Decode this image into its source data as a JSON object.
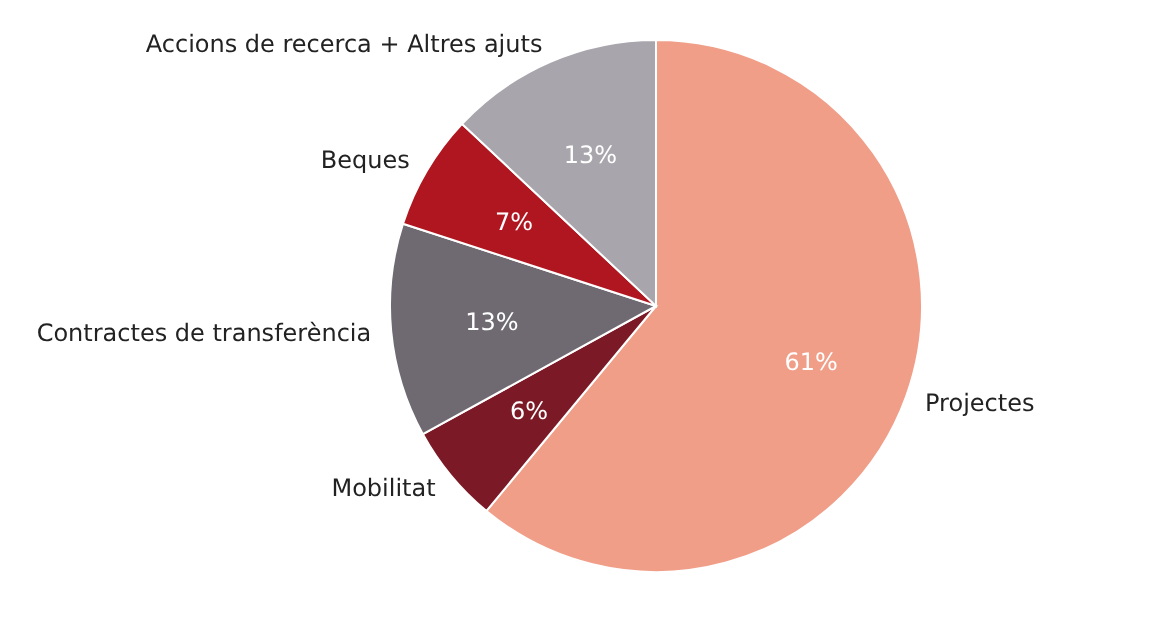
{
  "chart_data": {
    "type": "pie",
    "categories": [
      "Projectes",
      "Mobilitat",
      "Contractes de transferència",
      "Beques",
      "Accions de recerca + Altres ajuts"
    ],
    "values": [
      61,
      6,
      13,
      7,
      13
    ],
    "value_labels": [
      "61%",
      "6%",
      "13%",
      "7%",
      "13%"
    ],
    "colors": [
      "#f09e88",
      "#7b1a26",
      "#6f6a72",
      "#b0161f",
      "#a9a5ac"
    ],
    "legend": false
  }
}
